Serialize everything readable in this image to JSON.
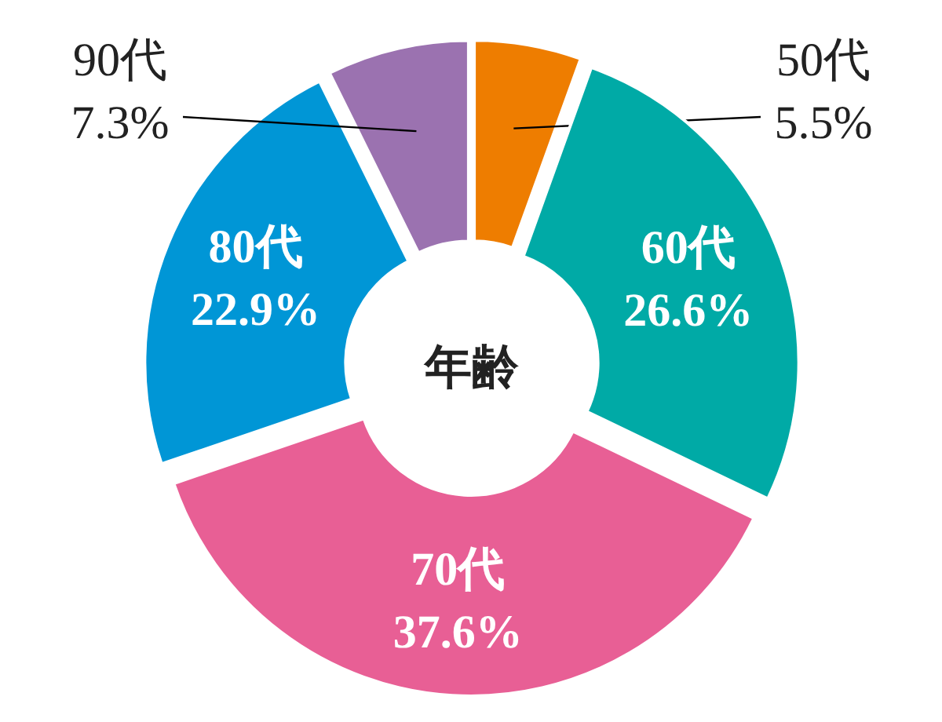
{
  "chart_data": {
    "type": "donut",
    "title": "年齢",
    "categories": [
      "50代",
      "60代",
      "70代",
      "80代",
      "90代"
    ],
    "values": [
      5.5,
      26.6,
      37.6,
      22.9,
      7.3
    ],
    "value_labels": [
      "5.5%",
      "26.6%",
      "37.6%",
      "22.9%",
      "7.3%"
    ],
    "colors": [
      "#ee7d00",
      "#00aaa6",
      "#e85f95",
      "#0096d6",
      "#9b72b0"
    ]
  }
}
